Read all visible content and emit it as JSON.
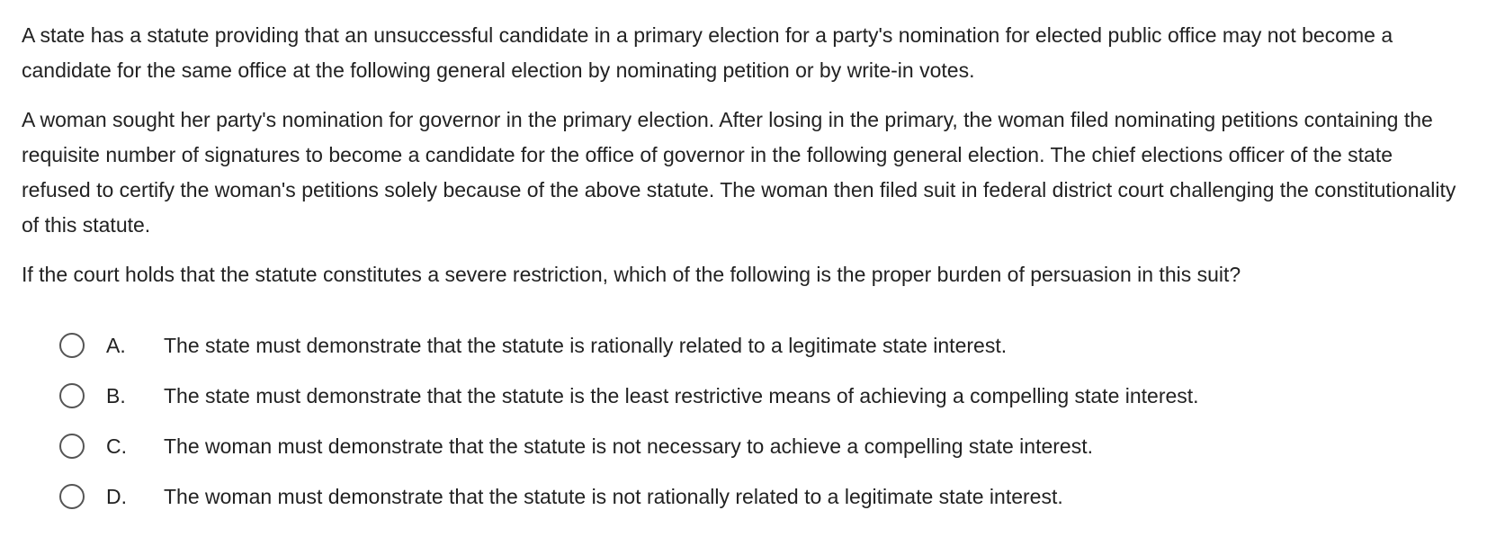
{
  "question": {
    "paragraphs": [
      "A state has a statute providing that an unsuccessful candidate in a primary election for a party's nomination for elected public office may not become a candidate for the same office at the following general election by nominating petition or by write-in votes.",
      "A woman sought her party's nomination for governor in the primary election.  After losing in the primary, the woman filed nominating petitions containing the requisite number of signatures to become a candidate for the office of governor in the following general election.  The chief elections officer of the state refused to certify the woman's petitions solely because of the above statute.  The woman then filed suit in federal district court challenging the constitutionality of this statute.",
      "If the court holds that the statute constitutes a severe restriction, which of the following is the proper burden of persuasion in this suit?"
    ]
  },
  "options": [
    {
      "letter": "A.",
      "text": "The state must demonstrate that the statute is rationally related to a legitimate state interest."
    },
    {
      "letter": "B.",
      "text": "The state must demonstrate that the statute is the least restrictive means of achieving a compelling state interest."
    },
    {
      "letter": "C.",
      "text": "The woman must demonstrate that the statute is not necessary to achieve a compelling state interest."
    },
    {
      "letter": "D.",
      "text": "The woman must demonstrate that the statute is not rationally related to a legitimate state interest."
    }
  ]
}
